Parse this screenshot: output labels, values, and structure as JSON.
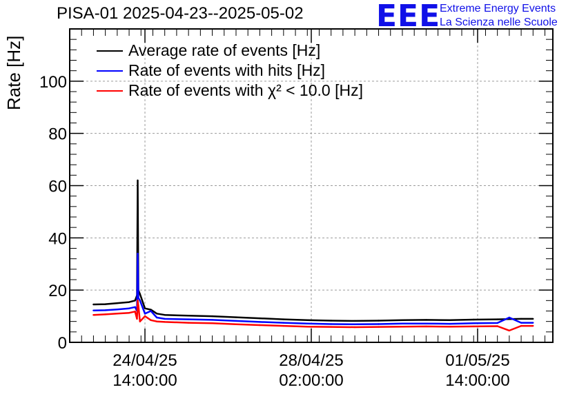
{
  "title": "PISA-01 2025-04-23--2025-05-02",
  "logo": {
    "mark": "EEE",
    "line1": "Extreme Energy Events",
    "line2": "La Scienza nelle Scuole",
    "color": "#1010e8"
  },
  "chart_data": {
    "type": "line",
    "ylabel": "Rate [Hz]",
    "xlabel": "",
    "ylim": [
      0,
      120
    ],
    "yticks": [
      0,
      20,
      40,
      60,
      80,
      100
    ],
    "xlim": [
      "2025-04-23T00:00:00",
      "2025-05-03T04:00:00"
    ],
    "xticks": [
      {
        "x": "2025-04-24T14:00:00",
        "date": "24/04/25",
        "time": "14:00:00"
      },
      {
        "x": "2025-04-28T02:00:00",
        "date": "28/04/25",
        "time": "02:00:00"
      },
      {
        "x": "2025-05-01T14:00:00",
        "date": "01/05/25",
        "time": "14:00:00"
      }
    ],
    "grid": true,
    "legend_position": "top-left",
    "series": [
      {
        "name": "Average rate of events [Hz]",
        "color": "#000000",
        "points": [
          [
            "2025-04-23T12:00:00",
            14.5
          ],
          [
            "2025-04-23T18:00:00",
            14.6
          ],
          [
            "2025-04-24T00:00:00",
            15.0
          ],
          [
            "2025-04-24T06:00:00",
            15.4
          ],
          [
            "2025-04-24T09:00:00",
            16.0
          ],
          [
            "2025-04-24T10:00:00",
            18.0
          ],
          [
            "2025-04-24T10:20:00",
            62.0
          ],
          [
            "2025-04-24T10:40:00",
            20.0
          ],
          [
            "2025-04-24T11:30:00",
            18.5
          ],
          [
            "2025-04-24T14:00:00",
            13.0
          ],
          [
            "2025-04-24T17:00:00",
            12.5
          ],
          [
            "2025-04-24T20:00:00",
            11.0
          ],
          [
            "2025-04-25T00:00:00",
            10.5
          ],
          [
            "2025-04-25T12:00:00",
            10.2
          ],
          [
            "2025-04-26T00:00:00",
            10.0
          ],
          [
            "2025-04-26T12:00:00",
            9.6
          ],
          [
            "2025-04-27T00:00:00",
            9.2
          ],
          [
            "2025-04-27T12:00:00",
            8.8
          ],
          [
            "2025-04-28T00:00:00",
            8.5
          ],
          [
            "2025-04-28T12:00:00",
            8.3
          ],
          [
            "2025-04-29T00:00:00",
            8.2
          ],
          [
            "2025-04-29T12:00:00",
            8.3
          ],
          [
            "2025-04-30T00:00:00",
            8.5
          ],
          [
            "2025-04-30T12:00:00",
            8.6
          ],
          [
            "2025-05-01T00:00:00",
            8.5
          ],
          [
            "2025-05-01T12:00:00",
            8.7
          ],
          [
            "2025-05-02T00:00:00",
            8.8
          ],
          [
            "2025-05-02T12:00:00",
            9.0
          ],
          [
            "2025-05-02T18:00:00",
            9.0
          ]
        ]
      },
      {
        "name": "Rate of events with hits [Hz]",
        "color": "#0000ff",
        "points": [
          [
            "2025-04-23T12:00:00",
            12.2
          ],
          [
            "2025-04-23T18:00:00",
            12.3
          ],
          [
            "2025-04-24T00:00:00",
            12.6
          ],
          [
            "2025-04-24T06:00:00",
            13.0
          ],
          [
            "2025-04-24T09:00:00",
            13.5
          ],
          [
            "2025-04-24T10:00:00",
            12.0
          ],
          [
            "2025-04-24T10:20:00",
            34.0
          ],
          [
            "2025-04-24T10:40:00",
            17.0
          ],
          [
            "2025-04-24T11:30:00",
            16.0
          ],
          [
            "2025-04-24T14:00:00",
            11.0
          ],
          [
            "2025-04-24T17:00:00",
            12.0
          ],
          [
            "2025-04-24T20:00:00",
            9.5
          ],
          [
            "2025-04-25T00:00:00",
            9.0
          ],
          [
            "2025-04-25T12:00:00",
            8.8
          ],
          [
            "2025-04-26T00:00:00",
            8.6
          ],
          [
            "2025-04-26T12:00:00",
            8.2
          ],
          [
            "2025-04-27T00:00:00",
            7.8
          ],
          [
            "2025-04-27T12:00:00",
            7.5
          ],
          [
            "2025-04-28T00:00:00",
            7.2
          ],
          [
            "2025-04-28T12:00:00",
            7.0
          ],
          [
            "2025-04-29T00:00:00",
            6.9
          ],
          [
            "2025-04-29T12:00:00",
            7.0
          ],
          [
            "2025-04-30T00:00:00",
            7.2
          ],
          [
            "2025-04-30T12:00:00",
            7.2
          ],
          [
            "2025-05-01T00:00:00",
            7.1
          ],
          [
            "2025-05-01T12:00:00",
            7.3
          ],
          [
            "2025-05-02T00:00:00",
            7.4
          ],
          [
            "2025-05-02T06:00:00",
            9.5
          ],
          [
            "2025-05-02T12:00:00",
            7.5
          ],
          [
            "2025-05-02T18:00:00",
            7.5
          ]
        ]
      },
      {
        "name": "Rate of events with χ² < 10.0 [Hz]",
        "color": "#ff0000",
        "points": [
          [
            "2025-04-23T12:00:00",
            10.5
          ],
          [
            "2025-04-23T18:00:00",
            10.7
          ],
          [
            "2025-04-24T00:00:00",
            11.0
          ],
          [
            "2025-04-24T06:00:00",
            11.3
          ],
          [
            "2025-04-24T09:00:00",
            11.8
          ],
          [
            "2025-04-24T10:00:00",
            9.0
          ],
          [
            "2025-04-24T10:20:00",
            16.0
          ],
          [
            "2025-04-24T10:40:00",
            14.0
          ],
          [
            "2025-04-24T11:30:00",
            8.0
          ],
          [
            "2025-04-24T14:00:00",
            10.0
          ],
          [
            "2025-04-24T17:00:00",
            8.5
          ],
          [
            "2025-04-24T20:00:00",
            8.0
          ],
          [
            "2025-04-25T00:00:00",
            7.8
          ],
          [
            "2025-04-25T12:00:00",
            7.5
          ],
          [
            "2025-04-26T00:00:00",
            7.3
          ],
          [
            "2025-04-26T12:00:00",
            6.9
          ],
          [
            "2025-04-27T00:00:00",
            6.6
          ],
          [
            "2025-04-27T12:00:00",
            6.3
          ],
          [
            "2025-04-28T00:00:00",
            6.0
          ],
          [
            "2025-04-28T12:00:00",
            5.9
          ],
          [
            "2025-04-29T00:00:00",
            5.8
          ],
          [
            "2025-04-29T12:00:00",
            5.9
          ],
          [
            "2025-04-30T00:00:00",
            6.0
          ],
          [
            "2025-04-30T12:00:00",
            6.1
          ],
          [
            "2025-05-01T00:00:00",
            6.0
          ],
          [
            "2025-05-01T12:00:00",
            6.1
          ],
          [
            "2025-05-02T00:00:00",
            6.2
          ],
          [
            "2025-05-02T06:00:00",
            4.5
          ],
          [
            "2025-05-02T12:00:00",
            6.3
          ],
          [
            "2025-05-02T18:00:00",
            6.3
          ]
        ]
      }
    ]
  }
}
